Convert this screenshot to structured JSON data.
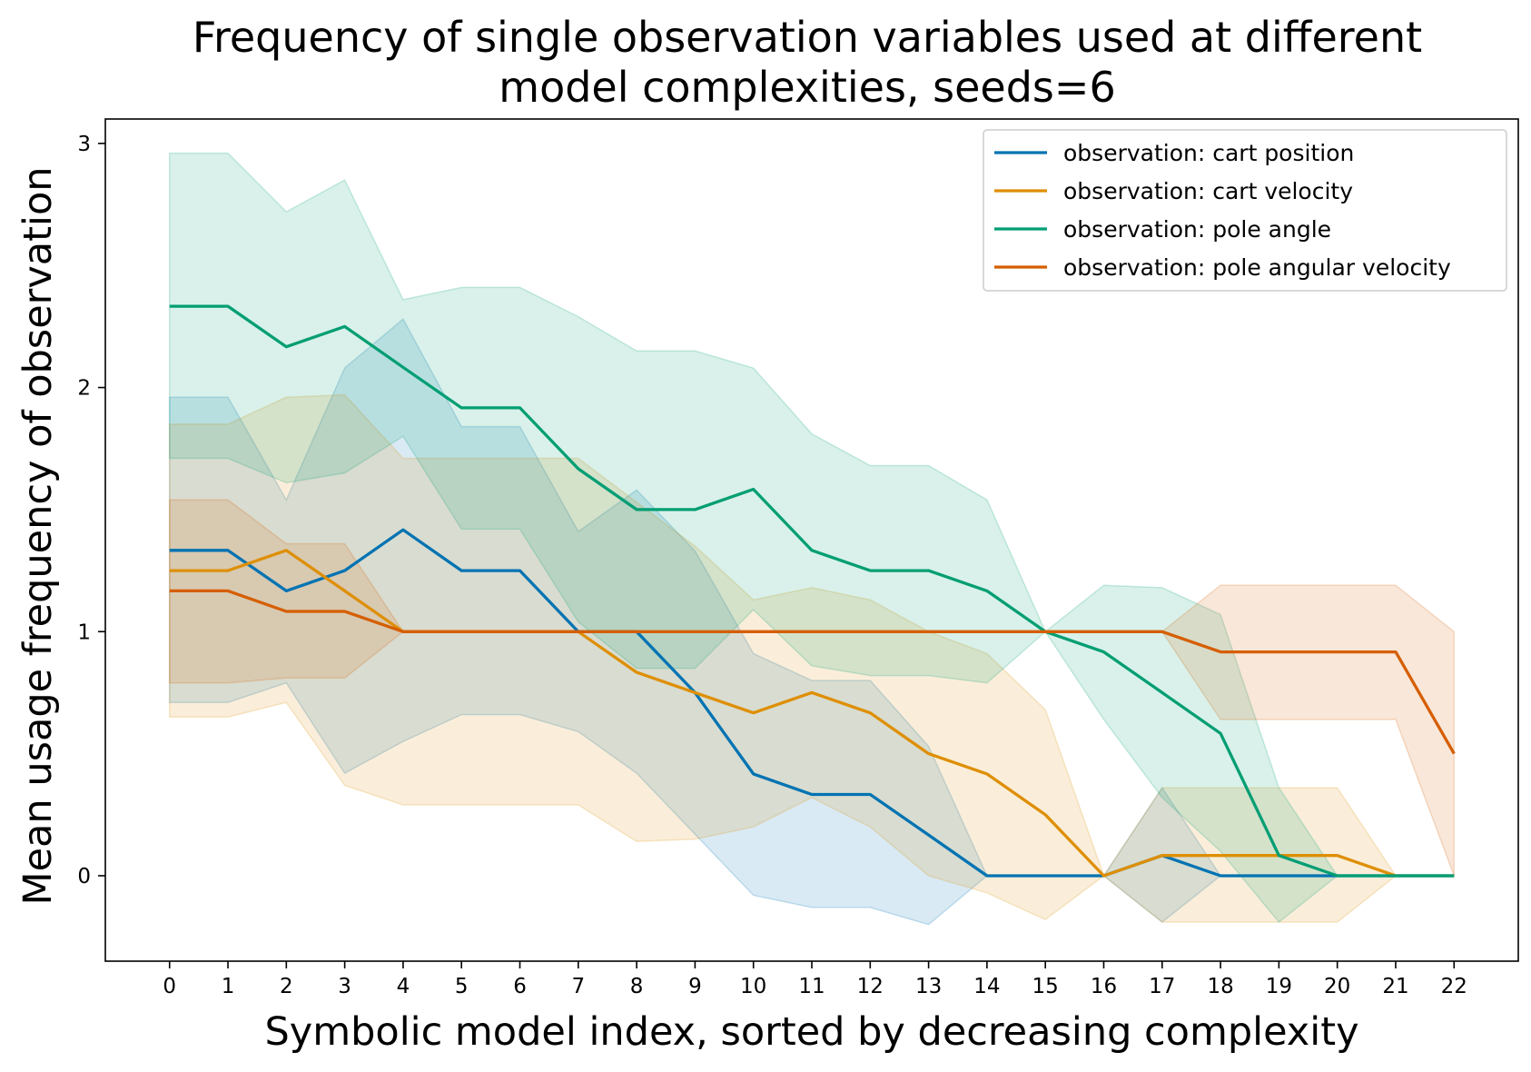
{
  "chart_data": {
    "type": "line",
    "title_lines": [
      "Frequency of single observation variables used at different",
      "model complexities, seeds=6"
    ],
    "xlabel": "Symbolic model index, sorted by decreasing complexity",
    "ylabel": "Mean usage frequency of observation",
    "x": [
      0,
      1,
      2,
      3,
      4,
      5,
      6,
      7,
      8,
      9,
      10,
      11,
      12,
      13,
      14,
      15,
      16,
      17,
      18,
      19,
      20,
      21,
      22
    ],
    "xlim": [
      -1.1,
      23.1
    ],
    "ylim": [
      -0.35,
      3.1
    ],
    "yticks": [
      0,
      1,
      2,
      3
    ],
    "grid": false,
    "legend_position": "top-right",
    "series": [
      {
        "name": "observation: cart position",
        "color": "#0173b2",
        "values": [
          1.333,
          1.333,
          1.167,
          1.25,
          1.417,
          1.25,
          1.25,
          1.0,
          1.0,
          0.75,
          0.417,
          0.333,
          0.333,
          0.167,
          0,
          0,
          0,
          0.083,
          0,
          0,
          0,
          0,
          0
        ],
        "lower": [
          0.71,
          0.71,
          0.79,
          0.42,
          0.55,
          0.66,
          0.66,
          0.59,
          0.42,
          0.17,
          -0.08,
          -0.13,
          -0.13,
          -0.2,
          0,
          0,
          0,
          -0.19,
          0,
          0,
          0,
          0,
          0
        ],
        "upper": [
          1.96,
          1.96,
          1.54,
          2.08,
          2.28,
          1.84,
          1.84,
          1.41,
          1.58,
          1.33,
          0.91,
          0.8,
          0.8,
          0.53,
          0,
          0,
          0,
          0.36,
          0,
          0,
          0,
          0,
          0
        ]
      },
      {
        "name": "observation: cart velocity",
        "color": "#de8f05",
        "values": [
          1.25,
          1.25,
          1.333,
          1.167,
          1.0,
          1.0,
          1.0,
          1.0,
          0.833,
          0.75,
          0.667,
          0.75,
          0.667,
          0.5,
          0.417,
          0.25,
          0,
          0.083,
          0.083,
          0.083,
          0.083,
          0,
          0
        ],
        "lower": [
          0.65,
          0.65,
          0.71,
          0.37,
          0.29,
          0.29,
          0.29,
          0.29,
          0.14,
          0.15,
          0.2,
          0.32,
          0.2,
          0,
          -0.07,
          -0.18,
          0,
          -0.19,
          -0.19,
          -0.19,
          -0.19,
          0,
          0
        ],
        "upper": [
          1.85,
          1.85,
          1.96,
          1.97,
          1.71,
          1.71,
          1.71,
          1.71,
          1.53,
          1.35,
          1.13,
          1.18,
          1.13,
          1.0,
          0.91,
          0.68,
          0,
          0.36,
          0.36,
          0.36,
          0.36,
          0,
          0
        ]
      },
      {
        "name": "observation: pole angle",
        "color": "#029e73",
        "values": [
          2.333,
          2.333,
          2.167,
          2.25,
          2.083,
          1.917,
          1.917,
          1.667,
          1.5,
          1.5,
          1.583,
          1.333,
          1.25,
          1.25,
          1.167,
          1.0,
          0.917,
          0.75,
          0.583,
          0.083,
          0,
          0,
          0
        ],
        "lower": [
          1.71,
          1.71,
          1.61,
          1.65,
          1.8,
          1.42,
          1.42,
          1.04,
          0.85,
          0.85,
          1.09,
          0.86,
          0.82,
          0.82,
          0.79,
          1.0,
          0.64,
          0.32,
          0.1,
          -0.19,
          0,
          0,
          0
        ],
        "upper": [
          2.96,
          2.96,
          2.72,
          2.85,
          2.36,
          2.41,
          2.41,
          2.29,
          2.15,
          2.15,
          2.08,
          1.81,
          1.68,
          1.68,
          1.54,
          1.0,
          1.19,
          1.18,
          1.07,
          0.36,
          0,
          0,
          0
        ]
      },
      {
        "name": "observation: pole angular velocity",
        "color": "#d55e00",
        "values": [
          1.167,
          1.167,
          1.083,
          1.083,
          1.0,
          1.0,
          1.0,
          1.0,
          1.0,
          1.0,
          1.0,
          1.0,
          1.0,
          1.0,
          1.0,
          1.0,
          1.0,
          1.0,
          0.917,
          0.917,
          0.917,
          0.917,
          0.5
        ],
        "lower": [
          0.79,
          0.79,
          0.81,
          0.81,
          1.0,
          1.0,
          1.0,
          1.0,
          1.0,
          1.0,
          1.0,
          1.0,
          1.0,
          1.0,
          1.0,
          1.0,
          1.0,
          1.0,
          0.64,
          0.64,
          0.64,
          0.64,
          0.0
        ],
        "upper": [
          1.54,
          1.54,
          1.36,
          1.36,
          1.0,
          1.0,
          1.0,
          1.0,
          1.0,
          1.0,
          1.0,
          1.0,
          1.0,
          1.0,
          1.0,
          1.0,
          1.0,
          1.0,
          1.19,
          1.19,
          1.19,
          1.19,
          1.0
        ]
      }
    ]
  }
}
